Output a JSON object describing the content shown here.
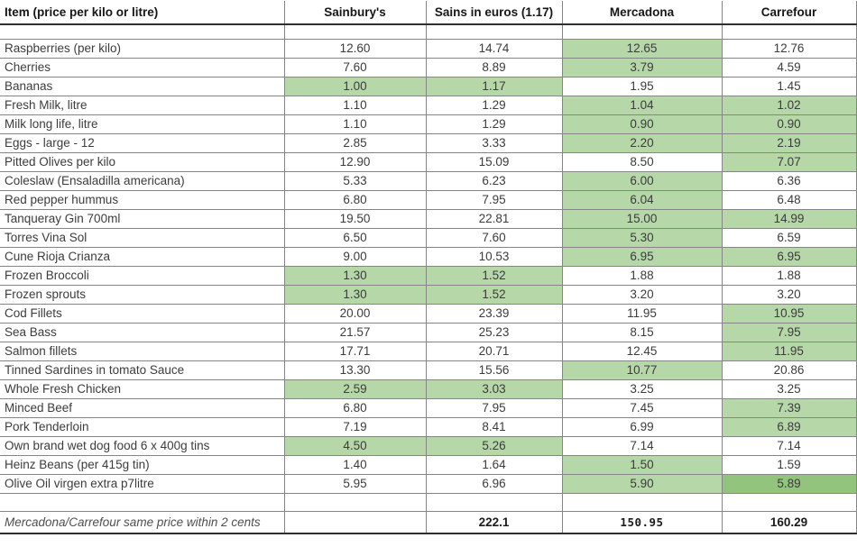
{
  "table": {
    "columns": [
      {
        "label": "Item (price per kilo or litre)"
      },
      {
        "label": "Sainbury's"
      },
      {
        "label": "Sains in euros (1.17)"
      },
      {
        "label": "Mercadona"
      },
      {
        "label": "Carrefour"
      }
    ],
    "rows": [
      {
        "item": "Raspberries (per kilo)",
        "values": [
          "12.60",
          "14.74",
          "12.65",
          "12.76"
        ],
        "hl": [
          0,
          0,
          1,
          0
        ]
      },
      {
        "item": "Cherries",
        "values": [
          "7.60",
          "8.89",
          "3.79",
          "4.59"
        ],
        "hl": [
          0,
          0,
          1,
          0
        ]
      },
      {
        "item": "Bananas",
        "values": [
          "1.00",
          "1.17",
          "1.95",
          "1.45"
        ],
        "hl": [
          1,
          1,
          0,
          0
        ]
      },
      {
        "item": "Fresh Milk, litre",
        "values": [
          "1.10",
          "1.29",
          "1.04",
          "1.02"
        ],
        "hl": [
          0,
          0,
          1,
          1
        ]
      },
      {
        "item": "Milk long life, litre",
        "values": [
          "1.10",
          "1.29",
          "0.90",
          "0.90"
        ],
        "hl": [
          0,
          0,
          1,
          1
        ]
      },
      {
        "item": "Eggs - large - 12",
        "values": [
          "2.85",
          "3.33",
          "2.20",
          "2.19"
        ],
        "hl": [
          0,
          0,
          1,
          1
        ]
      },
      {
        "item": "Pitted Olives per kilo",
        "values": [
          "12.90",
          "15.09",
          "8.50",
          "7.07"
        ],
        "hl": [
          0,
          0,
          0,
          1
        ]
      },
      {
        "item": "Coleslaw (Ensaladilla americana)",
        "values": [
          "5.33",
          "6.23",
          "6.00",
          "6.36"
        ],
        "hl": [
          0,
          0,
          1,
          0
        ]
      },
      {
        "item": "Red pepper hummus",
        "values": [
          "6.80",
          "7.95",
          "6.04",
          "6.48"
        ],
        "hl": [
          0,
          0,
          1,
          0
        ]
      },
      {
        "item": "Tanqueray Gin 700ml",
        "values": [
          "19.50",
          "22.81",
          "15.00",
          "14.99"
        ],
        "hl": [
          0,
          0,
          1,
          1
        ]
      },
      {
        "item": "Torres Vina Sol",
        "values": [
          "6.50",
          "7.60",
          "5.30",
          "6.59"
        ],
        "hl": [
          0,
          0,
          1,
          0
        ]
      },
      {
        "item": "Cune Rioja Crianza",
        "values": [
          "9.00",
          "10.53",
          "6.95",
          "6.95"
        ],
        "hl": [
          0,
          0,
          1,
          1
        ]
      },
      {
        "item": "Frozen Broccoli",
        "values": [
          "1.30",
          "1.52",
          "1.88",
          "1.88"
        ],
        "hl": [
          1,
          1,
          0,
          0
        ]
      },
      {
        "item": "Frozen sprouts",
        "values": [
          "1.30",
          "1.52",
          "3.20",
          "3.20"
        ],
        "hl": [
          1,
          1,
          0,
          0
        ]
      },
      {
        "item": "Cod Fillets",
        "values": [
          "20.00",
          "23.39",
          "11.95",
          "10.95"
        ],
        "hl": [
          0,
          0,
          0,
          1
        ]
      },
      {
        "item": "Sea Bass",
        "values": [
          "21.57",
          "25.23",
          "8.15",
          "7.95"
        ],
        "hl": [
          0,
          0,
          0,
          1
        ]
      },
      {
        "item": "Salmon fillets",
        "values": [
          "17.71",
          "20.71",
          "12.45",
          "11.95"
        ],
        "hl": [
          0,
          0,
          0,
          1
        ]
      },
      {
        "item": "Tinned Sardines in tomato Sauce",
        "values": [
          "13.30",
          "15.56",
          "10.77",
          "20.86"
        ],
        "hl": [
          0,
          0,
          1,
          0
        ]
      },
      {
        "item": "Whole Fresh Chicken",
        "values": [
          "2.59",
          "3.03",
          "3.25",
          "3.25"
        ],
        "hl": [
          1,
          1,
          0,
          0
        ]
      },
      {
        "item": "Minced Beef",
        "values": [
          "6.80",
          "7.95",
          "7.45",
          "7.39"
        ],
        "hl": [
          0,
          0,
          0,
          1
        ]
      },
      {
        "item": "Pork Tenderloin",
        "values": [
          "7.19",
          "8.41",
          "6.99",
          "6.89"
        ],
        "hl": [
          0,
          0,
          0,
          1
        ]
      },
      {
        "item": "Own brand wet dog food 6 x 400g tins",
        "values": [
          "4.50",
          "5.26",
          "7.14",
          "7.14"
        ],
        "hl": [
          1,
          1,
          0,
          0
        ]
      },
      {
        "item": "Heinz Beans (per 415g tin)",
        "values": [
          "1.40",
          "1.64",
          "1.50",
          "1.59"
        ],
        "hl": [
          0,
          0,
          1,
          0
        ]
      },
      {
        "item": "Olive Oil virgen extra p7litre",
        "values": [
          "5.95",
          "6.96",
          "5.90",
          "5.89"
        ],
        "hl": [
          0,
          0,
          1,
          2
        ]
      }
    ],
    "footer": {
      "note": "Mercadona/Carrefour same price within 2 cents",
      "totals": [
        "",
        "222.1",
        "150.95",
        "160.29"
      ]
    }
  },
  "colors": {
    "highlight_green": "#b6d7a8",
    "highlight_green_dark": "#93c47d"
  }
}
